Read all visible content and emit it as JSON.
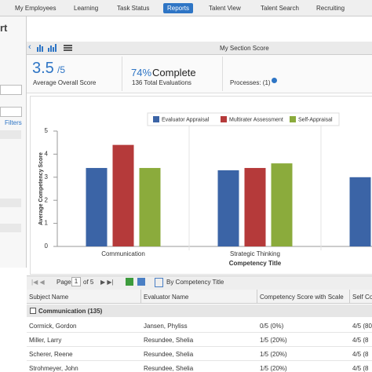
{
  "nav": {
    "items": [
      "My Employees",
      "Learning",
      "Task Status",
      "Reports",
      "Talent View",
      "Talent Search",
      "Recruiting"
    ],
    "active": 3
  },
  "sidebar": {
    "title": "rt",
    "filters": "Filters"
  },
  "section": {
    "title": "My Section Score"
  },
  "summary": {
    "score": "3.5",
    "scale": "/5",
    "score_label": "Average Overall Score",
    "percent": "74%",
    "complete": "Complete",
    "evaluations": "136 Total Evaluations",
    "processes": "Processes: (1)"
  },
  "chart_data": {
    "type": "bar",
    "x_label": "Competency Title",
    "y_label": "Average Competency Score",
    "categories": [
      "Communication",
      "Strategic Thinking",
      null
    ],
    "series": [
      {
        "name": "Evaluator Appraisal",
        "color": "#3b64a6",
        "values": [
          3.4,
          3.3,
          3.0
        ]
      },
      {
        "name": "Multirater Assessment",
        "color": "#b53a3a",
        "values": [
          4.4,
          3.4,
          null
        ]
      },
      {
        "name": "Self-Appraisal",
        "color": "#8bab3c",
        "values": [
          3.4,
          3.6,
          null
        ]
      }
    ],
    "ylim": [
      0,
      5
    ],
    "yticks": [
      0,
      1,
      2,
      3,
      4,
      5
    ],
    "grid": false,
    "legend": "top"
  },
  "pager": {
    "page": "Page",
    "current": "1",
    "of": "of 5",
    "group_by": "By Competency Title"
  },
  "table": {
    "columns": [
      "Subject Name",
      "Evaluator Name",
      "Competency Score with Scale",
      "Self Co"
    ],
    "group": "Communication (135)",
    "rows": [
      [
        "Cormick, Gordon",
        "Jansen, Phyliss",
        "0/5 (0%)",
        "4/5 (80"
      ],
      [
        "Miller, Larry",
        "Resundee, Shelia",
        "1/5 (20%)",
        "4/5 (8"
      ],
      [
        "Scherer, Reene",
        "Resundee, Shelia",
        "1/5 (20%)",
        "4/5 (8"
      ],
      [
        "Strohmeyer, John",
        "Resundee, Shelia",
        "1/5 (20%)",
        "4/5 (8"
      ]
    ]
  }
}
